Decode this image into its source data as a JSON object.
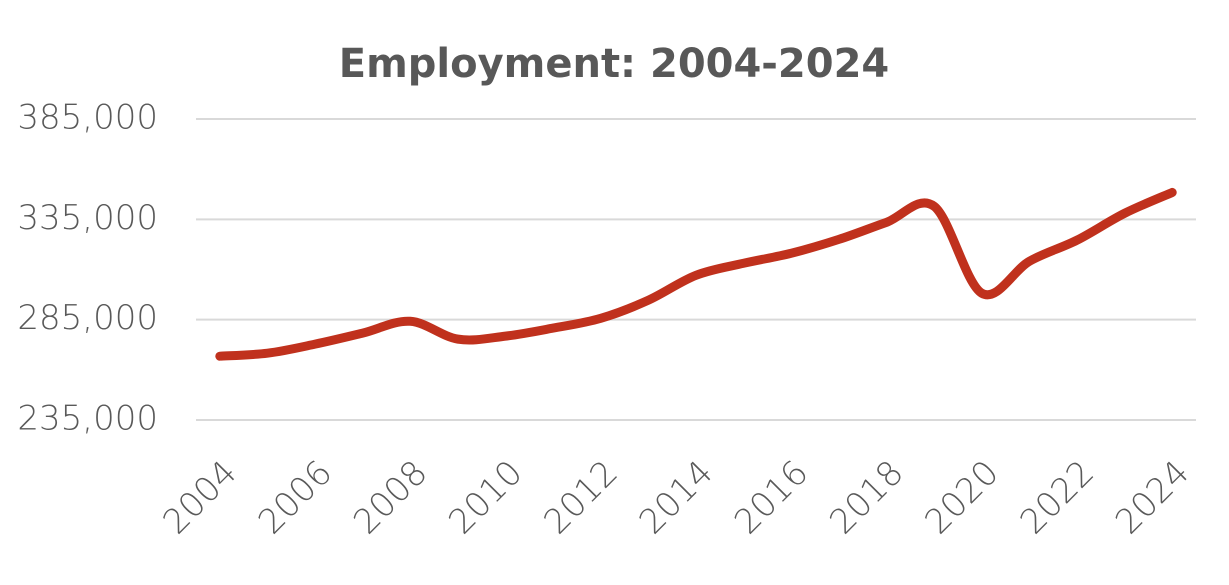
{
  "chart_data": {
    "type": "line",
    "title": "Employment: 2004-2024",
    "x": [
      2004,
      2005,
      2006,
      2007,
      2008,
      2009,
      2010,
      2011,
      2012,
      2013,
      2014,
      2015,
      2016,
      2017,
      2018,
      2019,
      2020,
      2021,
      2022,
      2023,
      2024
    ],
    "series": [
      {
        "name": "Employment",
        "color": "#c0311d",
        "values": [
          266800,
          268300,
          272800,
          278300,
          284200,
          275300,
          276800,
          280800,
          285700,
          294700,
          307100,
          313100,
          318100,
          325000,
          333500,
          341500,
          298200,
          314100,
          324600,
          338000,
          348400
        ]
      }
    ],
    "xlim": [
      2003.5,
      2024.5
    ],
    "xticks": [
      2004,
      2006,
      2008,
      2010,
      2012,
      2014,
      2016,
      2018,
      2020,
      2022,
      2024
    ],
    "ylim": [
      235000,
      385000
    ],
    "yticks": [
      {
        "value": 235000,
        "label": "235,000"
      },
      {
        "value": 285000,
        "label": "285,000"
      },
      {
        "value": 335000,
        "label": "335,000"
      },
      {
        "value": 385000,
        "label": "385,000"
      }
    ],
    "grid": true
  }
}
